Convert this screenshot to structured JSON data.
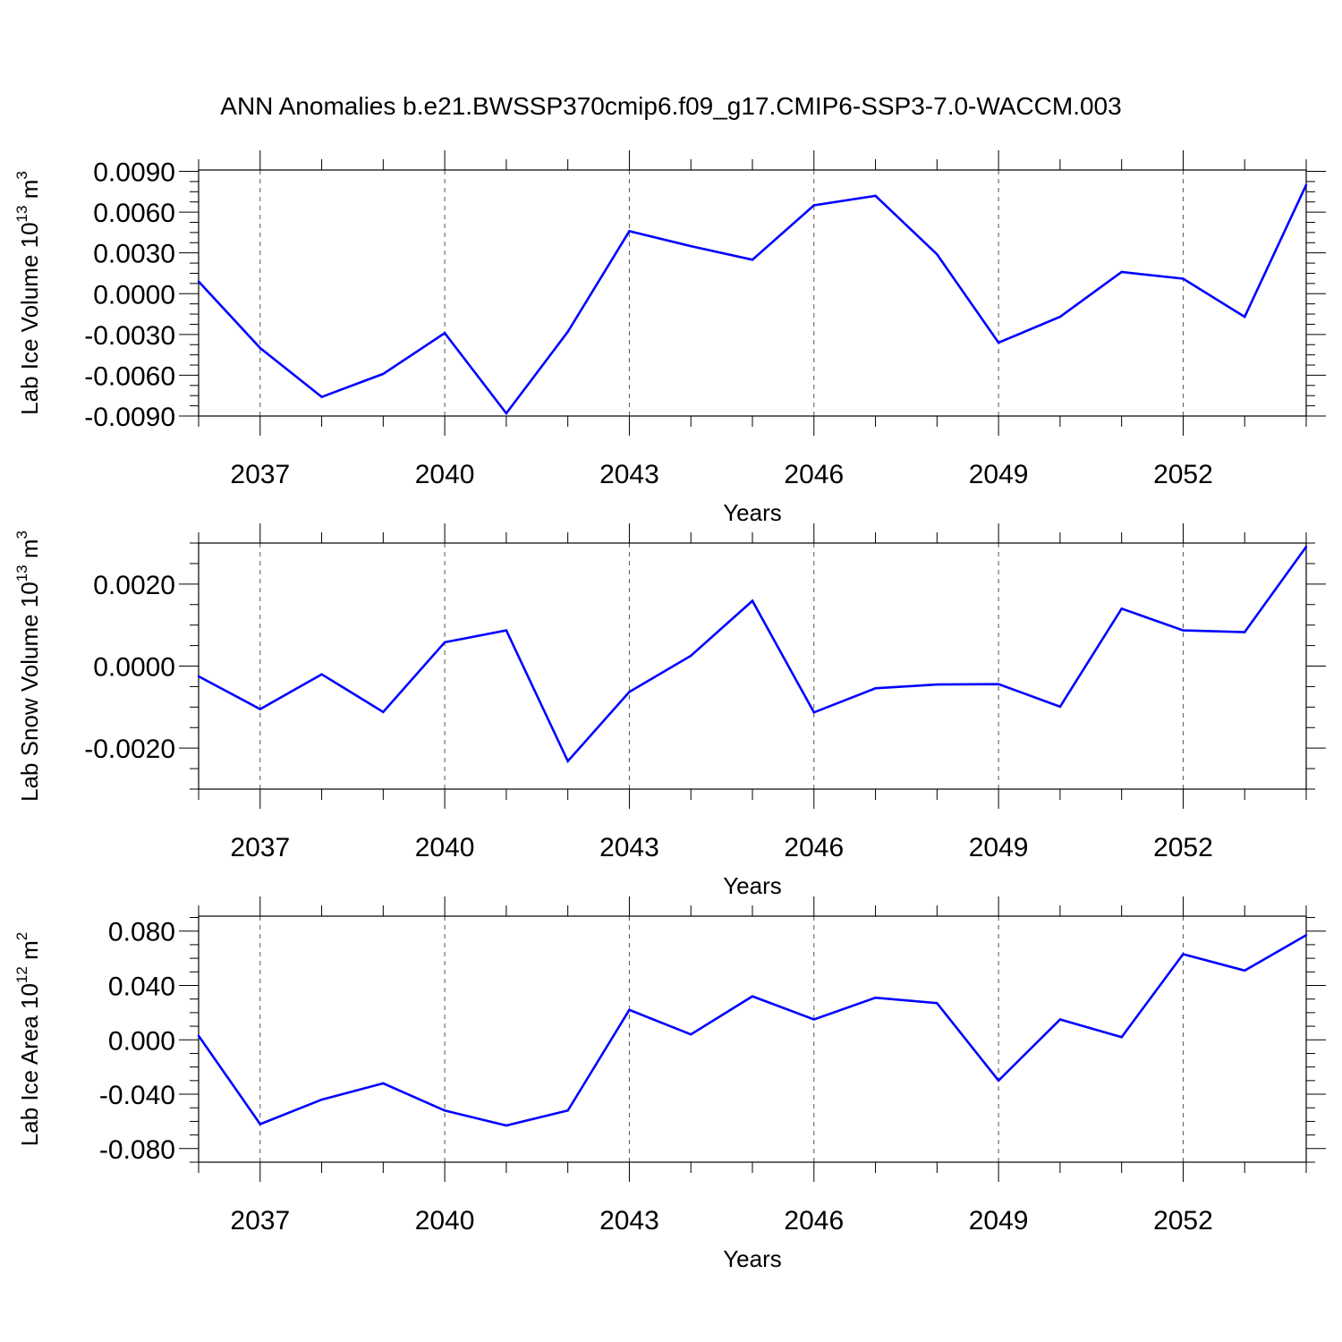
{
  "title": "ANN Anomalies b.e21.BWSSP370cmip6.f09_g17.CMIP6-SSP3-7.0-WACCM.003",
  "line_color": "#0000ff",
  "chart_data": [
    {
      "type": "line",
      "ylabel": {
        "base": "Lab Ice Volume 10",
        "exp": "13",
        "unit": " m",
        "unit_exp": "3"
      },
      "xlabel": "Years",
      "x": [
        2036,
        2037,
        2038,
        2039,
        2040,
        2041,
        2042,
        2043,
        2044,
        2045,
        2046,
        2047,
        2048,
        2049,
        2050,
        2051,
        2052,
        2053,
        2054
      ],
      "values": [
        0.0009,
        -0.004,
        -0.0076,
        -0.0059,
        -0.0029,
        -0.0088,
        -0.0028,
        0.0046,
        0.0035,
        0.0025,
        0.0065,
        0.0072,
        0.0029,
        -0.0036,
        -0.0017,
        0.0016,
        0.0011,
        -0.0017,
        0.008
      ],
      "xlim": [
        2036,
        2054
      ],
      "ylim": [
        -0.009,
        0.0091
      ],
      "yticks": [
        0.009,
        0.006,
        0.003,
        0.0,
        -0.003,
        -0.006,
        -0.009
      ],
      "yticklabels": [
        "0.0090",
        "0.0060",
        "0.0030",
        "0.0000",
        "-0.0030",
        "-0.0060",
        "-0.0090"
      ],
      "xticks": [
        2037,
        2040,
        2043,
        2046,
        2049,
        2052
      ],
      "xticklabels": [
        "2037",
        "2040",
        "2043",
        "2046",
        "2049",
        "2052"
      ]
    },
    {
      "type": "line",
      "ylabel": {
        "base": "Lab Snow Volume 10",
        "exp": "13",
        "unit": " m",
        "unit_exp": "3"
      },
      "xlabel": "Years",
      "x": [
        2036,
        2037,
        2038,
        2039,
        2040,
        2041,
        2042,
        2043,
        2044,
        2045,
        2046,
        2047,
        2048,
        2049,
        2050,
        2051,
        2052,
        2053,
        2054
      ],
      "values": [
        -0.00025,
        -0.00105,
        -0.0002,
        -0.00112,
        0.00058,
        0.00087,
        -0.00232,
        -0.00063,
        0.00025,
        0.00159,
        -0.00113,
        -0.00054,
        -0.00045,
        -0.00044,
        -0.00099,
        0.0014,
        0.00087,
        0.00083,
        0.00291
      ],
      "xlim": [
        2036,
        2054
      ],
      "ylim": [
        -0.003,
        0.003
      ],
      "yticks": [
        0.002,
        0.0,
        -0.002
      ],
      "yticklabels": [
        "0.0020",
        "0.0000",
        "-0.0020"
      ],
      "xticks": [
        2037,
        2040,
        2043,
        2046,
        2049,
        2052
      ],
      "xticklabels": [
        "2037",
        "2040",
        "2043",
        "2046",
        "2049",
        "2052"
      ]
    },
    {
      "type": "line",
      "ylabel": {
        "base": "Lab Ice Area 10",
        "exp": "12",
        "unit": " m",
        "unit_exp": "2"
      },
      "xlabel": "Years",
      "x": [
        2036,
        2037,
        2038,
        2039,
        2040,
        2041,
        2042,
        2043,
        2044,
        2045,
        2046,
        2047,
        2048,
        2049,
        2050,
        2051,
        2052,
        2053,
        2054
      ],
      "values": [
        0.003,
        -0.062,
        -0.044,
        -0.032,
        -0.052,
        -0.063,
        -0.052,
        0.022,
        0.004,
        0.032,
        0.015,
        0.031,
        0.027,
        -0.03,
        0.015,
        0.002,
        0.063,
        0.051,
        0.077
      ],
      "xlim": [
        2036,
        2054
      ],
      "ylim": [
        -0.09,
        0.091
      ],
      "yticks": [
        0.08,
        0.04,
        0.0,
        -0.04,
        -0.08
      ],
      "yticklabels": [
        "0.080",
        "0.040",
        "0.000",
        "-0.040",
        "-0.080"
      ],
      "xticks": [
        2037,
        2040,
        2043,
        2046,
        2049,
        2052
      ],
      "xticklabels": [
        "2037",
        "2040",
        "2043",
        "2046",
        "2049",
        "2052"
      ]
    }
  ]
}
